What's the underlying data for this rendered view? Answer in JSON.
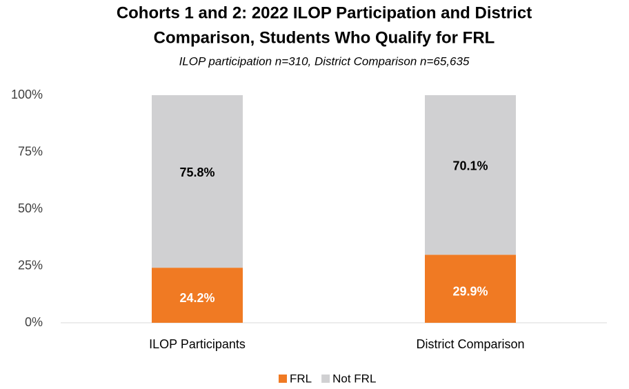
{
  "chart_data": {
    "type": "stacked_bar",
    "title": [
      "Cohorts 1 and 2: 2022 ILOP Participation and District",
      "Comparison, Students Who Qualify for FRL"
    ],
    "subtitle": "ILOP participation n=310, District Comparison n=65,635",
    "categories": [
      "ILOP Participants",
      "District Comparison"
    ],
    "series": [
      {
        "name": "FRL",
        "color": "#f07a23",
        "values": [
          24.2,
          29.9
        ],
        "value_labels": [
          "24.2%",
          "29.9%"
        ]
      },
      {
        "name": "Not FRL",
        "color": "#d0d0d2",
        "values": [
          75.8,
          70.1
        ],
        "value_labels": [
          "75.8%",
          "70.1%"
        ]
      }
    ],
    "ylim": [
      0,
      100
    ],
    "yticks": [
      {
        "value": 0,
        "label": "0%"
      },
      {
        "value": 25,
        "label": "25%"
      },
      {
        "value": 50,
        "label": "50%"
      },
      {
        "value": 75,
        "label": "75%"
      },
      {
        "value": 100,
        "label": "100%"
      }
    ],
    "grid": false,
    "legend": "bottom"
  }
}
